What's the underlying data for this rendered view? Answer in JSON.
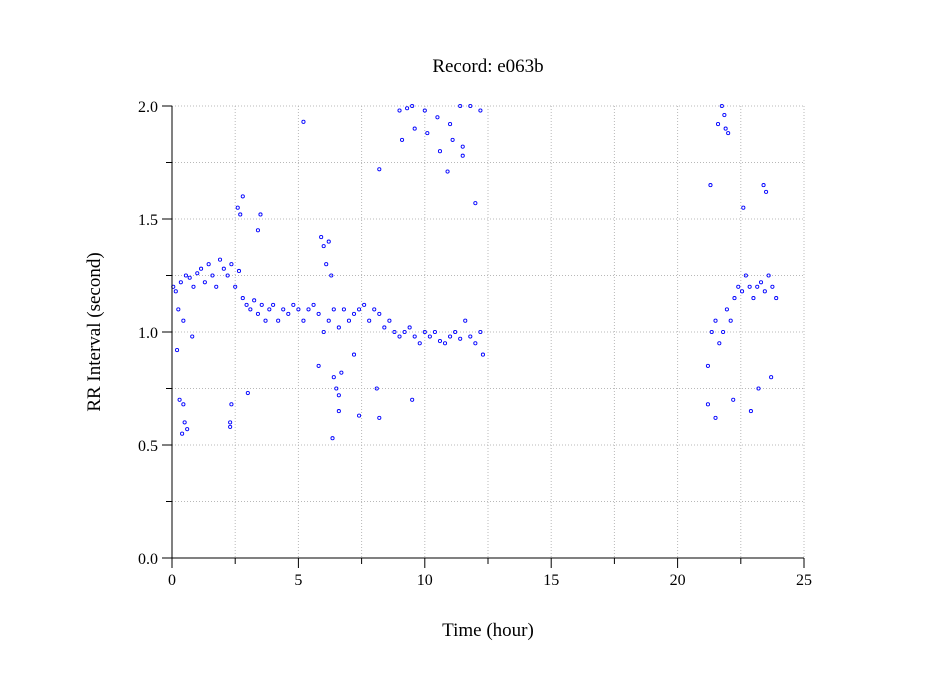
{
  "chart_data": {
    "type": "scatter",
    "title": "Record:  e063b",
    "xlabel": "Time (hour)",
    "ylabel": "RR Interval (second)",
    "xlim": [
      0,
      25
    ],
    "ylim": [
      0,
      2
    ],
    "xticks": [
      0,
      5,
      10,
      15,
      20,
      25
    ],
    "xtick_labels": [
      "0",
      "5",
      "10",
      "15",
      "20",
      "25"
    ],
    "yticks": [
      0,
      0.5,
      1,
      1.5,
      2
    ],
    "ytick_labels": [
      "0.0",
      "0.5",
      "1.0",
      "1.5",
      "2.0"
    ],
    "grid": true,
    "marker_color": "#0000ff",
    "series": [
      {
        "x": [
          0.05,
          0.15,
          0.25,
          0.35,
          0.45,
          0.55,
          0.7,
          0.85,
          1.0,
          1.15,
          1.3,
          1.45,
          1.6,
          1.75,
          1.9,
          2.05,
          2.2,
          2.35,
          2.5,
          2.65,
          2.8,
          2.95,
          3.1,
          3.25,
          3.4,
          3.55,
          3.7,
          3.85,
          4.0,
          4.2,
          4.4,
          4.6,
          4.8,
          5.0,
          5.2,
          5.4,
          5.6,
          5.8,
          6.0,
          6.2,
          6.4,
          6.6,
          6.8,
          7.0,
          7.2,
          7.4,
          7.6,
          7.8,
          8.0,
          8.2,
          8.4,
          8.6,
          8.8,
          9.0,
          9.2,
          9.4,
          9.6,
          9.8,
          10.0,
          10.2,
          10.4,
          10.6,
          10.8,
          11.0,
          11.2,
          11.4,
          11.6,
          11.8,
          12.0,
          12.2,
          12.3,
          21.2,
          21.35,
          21.5,
          21.65,
          21.8,
          21.95,
          22.1,
          22.25,
          22.4,
          22.55,
          22.7,
          22.85,
          23.0,
          23.15,
          23.3,
          23.45,
          23.6,
          23.75,
          23.9,
          0.3,
          0.4,
          0.5,
          0.6,
          0.8,
          2.3,
          2.35,
          2.6,
          2.7,
          2.8,
          3.4,
          3.5,
          5.9,
          6.0,
          6.1,
          6.2,
          6.3,
          5.8,
          6.4,
          6.5,
          6.6,
          6.7,
          7.2,
          8.1,
          9.0,
          9.5,
          10.0,
          10.5,
          11.0,
          11.4,
          11.8,
          12.2,
          9.1,
          9.6,
          10.1,
          10.6,
          11.1,
          11.5,
          8.2,
          9.3,
          10.9,
          12.0,
          21.3,
          21.6,
          21.75,
          21.85,
          21.9,
          22.0,
          23.5,
          23.4,
          22.6,
          21.2,
          21.5,
          22.2,
          22.9,
          23.2,
          23.7,
          0.2,
          0.45,
          2.3,
          6.6,
          7.4,
          8.2,
          9.5,
          11.5,
          3.0,
          5.2,
          6.35
        ],
        "y": [
          1.2,
          1.18,
          1.1,
          1.22,
          1.05,
          1.25,
          1.24,
          1.2,
          1.26,
          1.28,
          1.22,
          1.3,
          1.25,
          1.2,
          1.32,
          1.28,
          1.25,
          1.3,
          1.2,
          1.27,
          1.15,
          1.12,
          1.1,
          1.14,
          1.08,
          1.12,
          1.05,
          1.1,
          1.12,
          1.05,
          1.1,
          1.08,
          1.12,
          1.1,
          1.05,
          1.1,
          1.12,
          1.08,
          1.0,
          1.05,
          1.1,
          1.02,
          1.1,
          1.05,
          1.08,
          1.1,
          1.12,
          1.05,
          1.1,
          1.08,
          1.02,
          1.05,
          1.0,
          0.98,
          1.0,
          1.02,
          0.98,
          0.95,
          1.0,
          0.98,
          1.0,
          0.96,
          0.95,
          0.98,
          1.0,
          0.97,
          1.05,
          0.98,
          0.95,
          1.0,
          0.9,
          0.85,
          1.0,
          1.05,
          0.95,
          1.0,
          1.1,
          1.05,
          1.15,
          1.2,
          1.18,
          1.25,
          1.2,
          1.15,
          1.2,
          1.22,
          1.18,
          1.25,
          1.2,
          1.15,
          0.7,
          0.55,
          0.6,
          0.57,
          0.98,
          0.6,
          0.68,
          1.55,
          1.52,
          1.6,
          1.45,
          1.52,
          1.42,
          1.38,
          1.3,
          1.4,
          1.25,
          0.85,
          0.8,
          0.75,
          0.72,
          0.82,
          0.9,
          0.75,
          1.98,
          2.0,
          1.98,
          1.95,
          1.92,
          2.0,
          2.0,
          1.98,
          1.85,
          1.9,
          1.88,
          1.8,
          1.85,
          1.78,
          1.72,
          1.99,
          1.71,
          1.57,
          1.65,
          1.92,
          2.0,
          1.96,
          1.9,
          1.88,
          1.62,
          1.65,
          1.55,
          0.68,
          0.62,
          0.7,
          0.65,
          0.75,
          0.8,
          0.92,
          0.68,
          0.58,
          0.65,
          0.63,
          0.62,
          0.7,
          1.82,
          0.73,
          1.93,
          0.53
        ]
      }
    ]
  }
}
